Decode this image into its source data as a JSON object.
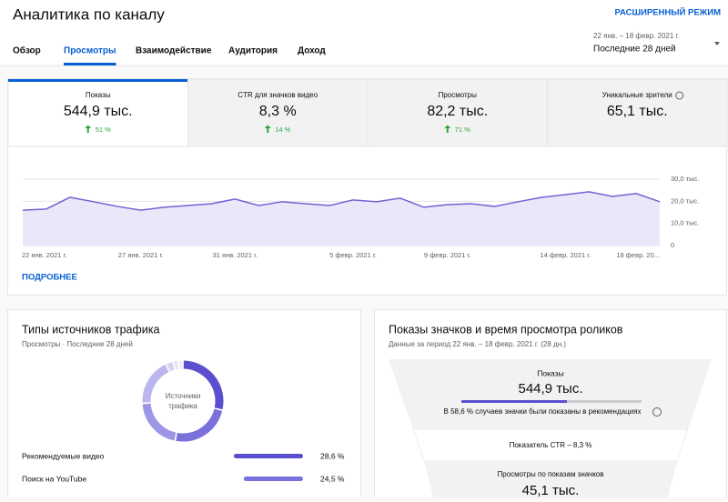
{
  "header": {
    "title": "Аналитика по каналу",
    "advanced_mode": "РАСШИРЕННЫЙ РЕЖИМ",
    "date_range": "22 янв. – 18 февр. 2021 г.",
    "period": "Последние 28 дней"
  },
  "tabs": {
    "items": [
      "Обзор",
      "Просмотры",
      "Взаимодействие",
      "Аудитория",
      "Доход"
    ],
    "active": 1
  },
  "metrics": {
    "active": 0,
    "items": [
      {
        "label": "Показы",
        "value": "544,9 тыс.",
        "change": "51 %"
      },
      {
        "label": "CTR для значков видео",
        "value": "8,3 %",
        "change": "14 %"
      },
      {
        "label": "Просмотры",
        "value": "82,2 тыс.",
        "change": "71 %"
      },
      {
        "label": "Уникальные зрители",
        "value": "65,1 тыс."
      }
    ]
  },
  "chart_data": {
    "type": "line",
    "categories": [
      "22 янв. 2021 г.",
      null,
      null,
      null,
      null,
      "27 янв. 2021 г.",
      null,
      null,
      null,
      "31 янв. 2021 г.",
      null,
      null,
      null,
      null,
      "5 февр. 2021 г.",
      null,
      null,
      null,
      "9 февр. 2021 г.",
      null,
      null,
      null,
      null,
      "14 февр. 2021 г.",
      null,
      null,
      null,
      "18 февр. 20..."
    ],
    "values": [
      16000,
      16500,
      21800,
      19800,
      17700,
      16000,
      17300,
      18100,
      18900,
      21000,
      18100,
      19800,
      18900,
      18100,
      20600,
      19800,
      21400,
      17300,
      18500,
      18900,
      17700,
      19800,
      21800,
      23000,
      24300,
      22200,
      23500,
      19800
    ],
    "ylim": [
      0,
      30000
    ],
    "yticks": [
      0,
      {
        "value": 10000,
        "label": "10,0 тыс."
      },
      {
        "value": 20000,
        "label": "20,0 тыс."
      },
      {
        "value": 30000,
        "label": "30,0 тыс."
      }
    ],
    "color": "#6f64d6",
    "fill": "#e9e7f8",
    "grid": true
  },
  "details_link": "ПОДРОБНЕЕ",
  "traffic": {
    "title": "Типы источников трафика",
    "subtitle": "Просмотры · Последние 28 дней",
    "center_label": [
      "Источники",
      "трафика"
    ],
    "rows": [
      {
        "name": "Рекомендуемые видео",
        "value": 28.6,
        "value_label": "28,6 %",
        "color": "#5b4fd0"
      },
      {
        "name": "Поиск на YouTube",
        "value": 24.5,
        "value_label": "24,5 %",
        "color": "#7b71dc"
      }
    ],
    "other_segments": [
      {
        "value": 21,
        "color": "#9d95e5"
      },
      {
        "value": 19,
        "color": "#bcb6ee"
      },
      {
        "value": 3,
        "color": "#d6d2f4"
      },
      {
        "value": 2,
        "color": "#e4e1f7"
      },
      {
        "value": 1.9,
        "color": "#efedfa"
      }
    ]
  },
  "funnel": {
    "title": "Показы значков и время просмотра роликов",
    "subtitle": "Данные за период 22 янв. – 18 февр. 2021 г. (28 дн.)",
    "impressions_label": "Показы",
    "impressions": "544,9 тыс.",
    "recommended_share": 58.6,
    "recommended_note": "В 58,6 % случаев значки были показаны в рекомендациях",
    "ctr_note": "Показатель CTR – 8,3 %",
    "views_label": "Просмотры по показам значков",
    "views": "45,1 тыс."
  }
}
